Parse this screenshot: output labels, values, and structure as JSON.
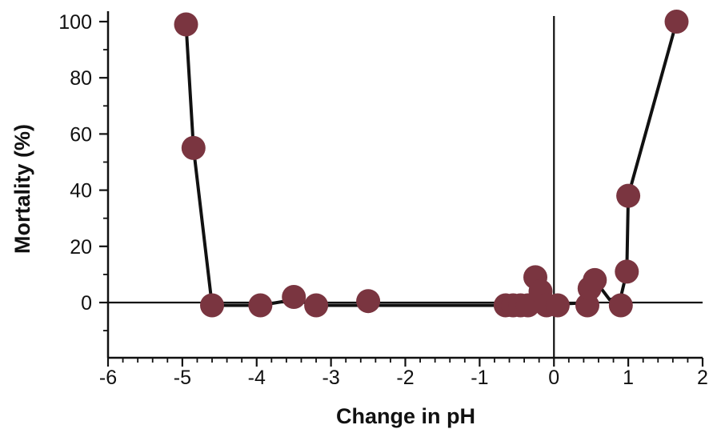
{
  "chart_data": {
    "type": "scatter",
    "title": "",
    "xlabel": "Change in pH",
    "ylabel": "Mortality (%)",
    "xlim": [
      -6,
      2
    ],
    "ylim": [
      -18,
      100
    ],
    "x_ticks": [
      -6,
      -5,
      -4,
      -3,
      -2,
      -1,
      0,
      1,
      2
    ],
    "y_ticks": [
      0,
      20,
      40,
      60,
      80,
      100
    ],
    "x_tick_labels": [
      "-6",
      "-5",
      "-4",
      "-3",
      "-2",
      "-1",
      "0",
      "1",
      "2"
    ],
    "y_tick_labels": [
      "0",
      "20",
      "40",
      "60",
      "80",
      "100"
    ],
    "reference_lines": {
      "x": 0,
      "y": 0
    },
    "grid": false,
    "legend": "none",
    "marker_color": "#7a3540",
    "line_color": "#111111",
    "points": [
      {
        "x": -4.95,
        "y": 99
      },
      {
        "x": -4.85,
        "y": 55
      },
      {
        "x": -4.6,
        "y": -1
      },
      {
        "x": -3.95,
        "y": -1
      },
      {
        "x": -3.5,
        "y": 2
      },
      {
        "x": -3.2,
        "y": -1
      },
      {
        "x": -2.5,
        "y": 0.5
      },
      {
        "x": -0.65,
        "y": -1
      },
      {
        "x": -0.55,
        "y": -1
      },
      {
        "x": -0.45,
        "y": -1
      },
      {
        "x": -0.35,
        "y": -1
      },
      {
        "x": -0.25,
        "y": 9
      },
      {
        "x": -0.18,
        "y": 4
      },
      {
        "x": -0.1,
        "y": -1
      },
      {
        "x": 0.05,
        "y": -1
      },
      {
        "x": 0.45,
        "y": -1
      },
      {
        "x": 0.48,
        "y": 5
      },
      {
        "x": 0.55,
        "y": 8
      },
      {
        "x": 0.9,
        "y": -1
      },
      {
        "x": 0.98,
        "y": 11
      },
      {
        "x": 1.0,
        "y": 38
      },
      {
        "x": 1.65,
        "y": 100
      }
    ],
    "trend_line": [
      {
        "x": -4.95,
        "y": 99
      },
      {
        "x": -4.85,
        "y": 55
      },
      {
        "x": -4.6,
        "y": -1
      },
      {
        "x": -3.95,
        "y": -1
      },
      {
        "x": -3.5,
        "y": 1
      },
      {
        "x": -3.2,
        "y": -1
      },
      {
        "x": -0.3,
        "y": -1
      },
      {
        "x": 0.5,
        "y": 0
      },
      {
        "x": 0.55,
        "y": 8
      },
      {
        "x": 0.75,
        "y": 1
      },
      {
        "x": 0.9,
        "y": 2
      },
      {
        "x": 0.98,
        "y": 11
      },
      {
        "x": 1.0,
        "y": 38
      },
      {
        "x": 1.65,
        "y": 100
      }
    ]
  }
}
